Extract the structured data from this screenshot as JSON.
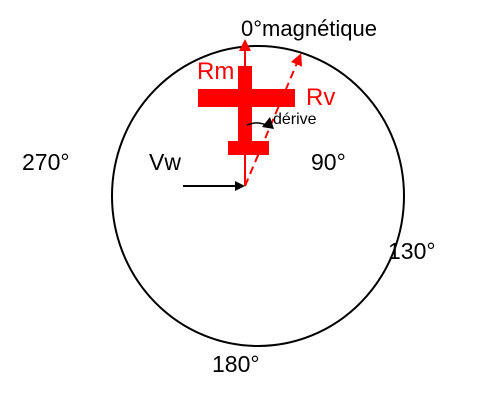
{
  "labels": {
    "north": "0°magnétique",
    "west": "270°",
    "east": "90°",
    "south": "180°",
    "bearing_130": "130°",
    "wind": "Vw",
    "magnetic_heading": "Rm",
    "true_heading": "Rv",
    "drift": "dérive"
  },
  "colors": {
    "text": "#000000",
    "accent": "#ff0000",
    "line": "#000000"
  }
}
